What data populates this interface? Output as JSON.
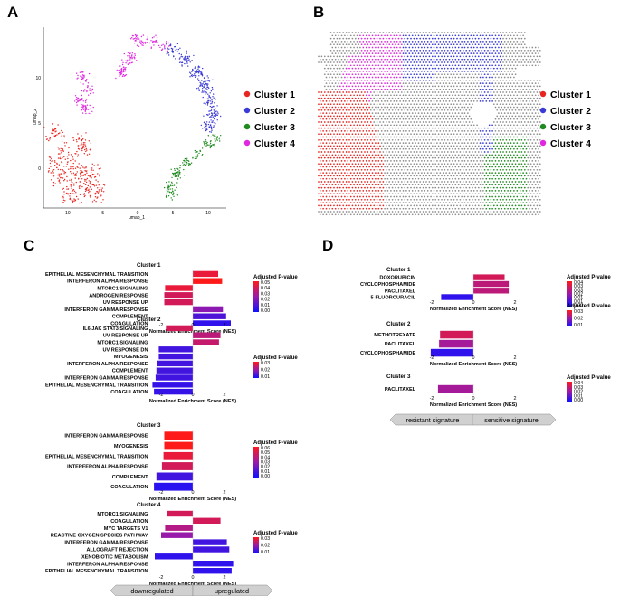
{
  "panels": {
    "A": "A",
    "B": "B",
    "C": "C",
    "D": "D"
  },
  "umap": {
    "xlabel": "umap_1",
    "ylabel": "umap_2",
    "xticks": [
      "-10",
      "-5",
      "0",
      "5",
      "10"
    ],
    "yticks": [
      "0",
      "5",
      "10"
    ]
  },
  "legend_clusters": [
    {
      "label": "Cluster 1",
      "color": "#e8251f"
    },
    {
      "label": "Cluster 2",
      "color": "#3a3ad6"
    },
    {
      "label": "Cluster 3",
      "color": "#1f8a1f"
    },
    {
      "label": "Cluster 4",
      "color": "#e026e0"
    }
  ],
  "gradient": {
    "red": "#ff1a1a",
    "mid": "#9a1aa8",
    "blue": "#1010ff"
  },
  "chart_data": [
    {
      "type": "bar",
      "panel": "C",
      "title": "Cluster 1",
      "xlabel": "Normalized Enrichment Score (NES)",
      "xlim": [
        -3,
        3
      ],
      "xticks": [
        "-2",
        "0",
        "2"
      ],
      "legend_title": "Adjusted P-value",
      "legend_ticks": [
        "0.05",
        "0.04",
        "0.03",
        "0.02",
        "0.01",
        "0.00"
      ],
      "categories": [
        "EPITHELIAL MESENCHYMAL TRANSITION",
        "INTERFERON ALPHA RESPONSE",
        "MTORC1 SIGNALING",
        "ANDROGEN RESPONSE",
        "UV RESPONSE UP",
        "INTERFERON GAMMA RESPONSE",
        "COMPLEMENT",
        "COAGULATION"
      ],
      "values": [
        1.6,
        1.85,
        -1.75,
        -1.8,
        -1.8,
        1.9,
        2.1,
        2.4
      ],
      "padj": [
        0.04,
        0.045,
        0.04,
        0.035,
        0.035,
        0.02,
        0.01,
        0.005
      ]
    },
    {
      "type": "bar",
      "panel": "C",
      "title": "Cluster 2",
      "xlabel": "Normalized Enrichment Score (NES)",
      "xlim": [
        -3,
        3
      ],
      "xticks": [
        "-2",
        "0",
        "2"
      ],
      "legend_title": "Adjusted P-value",
      "legend_ticks": [
        "0.03",
        "0.02",
        "0.01"
      ],
      "categories": [
        "IL6 JAK STAT3 SIGNALING",
        "UV RESPONSE UP",
        "MTORC1 SIGNALING",
        "UV RESPONSE DN",
        "MYOGENESIS",
        "INTERFERON ALPHA RESPONSE",
        "COMPLEMENT",
        "INTERFERON GAMMA RESPONSE",
        "EPITHELIAL MESENCHYMAL TRANSITION",
        "COAGULATION"
      ],
      "values": [
        -1.7,
        1.75,
        1.65,
        -2.15,
        -2.15,
        -2.25,
        -2.3,
        -2.35,
        -2.55,
        -2.45
      ],
      "padj": [
        0.035,
        0.03,
        0.032,
        0.008,
        0.008,
        0.008,
        0.008,
        0.008,
        0.006,
        0.006
      ]
    },
    {
      "type": "bar",
      "panel": "C",
      "title": "Cluster 3",
      "xlabel": "Normalized Enrichment Score (NES)",
      "xlim": [
        -3,
        3
      ],
      "xticks": [
        "-2",
        "0",
        "2"
      ],
      "legend_title": "Adjusted P-value",
      "legend_ticks": [
        "0.06",
        "0.05",
        "0.04",
        "0.03",
        "0.02",
        "0.01",
        "0.00"
      ],
      "categories": [
        "INTERFERON GAMMA RESPONSE",
        "MYOGENESIS",
        "EPITHELIAL MESENCHYMAL TRANSITION",
        "INTERFERON ALPHA RESPONSE",
        "COMPLEMENT",
        "COAGULATION"
      ],
      "values": [
        -1.8,
        -1.8,
        -1.85,
        -1.95,
        -2.3,
        -2.45
      ],
      "padj": [
        0.045,
        0.045,
        0.04,
        0.035,
        0.008,
        0.004
      ]
    },
    {
      "type": "bar",
      "panel": "C",
      "title": "Cluster 4",
      "xlabel": "Normalized Enrichment Score (NES)",
      "xlim": [
        -3,
        3
      ],
      "xticks": [
        "-2",
        "0",
        "2"
      ],
      "legend_title": "Adjusted P-value",
      "legend_ticks": [
        "0.03",
        "0.02",
        "0.01"
      ],
      "categories": [
        "MTORC1 SIGNALING",
        "COAGULATION",
        "MYC TARGETS V1",
        "REACTIVE OXYGEN SPECIES PATHWAY",
        "INTERFERON GAMMA RESPONSE",
        "ALLOGRAFT REJECTION",
        "XENOBIOTIC METABOLISM",
        "INTERFERON ALPHA RESPONSE",
        "EPITHELIAL MESENCHYMAL TRANSITION"
      ],
      "values": [
        -1.6,
        1.75,
        -1.75,
        -2.0,
        2.15,
        2.3,
        -2.4,
        2.55,
        2.45
      ],
      "padj": [
        0.035,
        0.035,
        0.028,
        0.022,
        0.008,
        0.008,
        0.005,
        0.005,
        0.005
      ]
    },
    {
      "type": "bar",
      "panel": "D",
      "title": "Cluster 1",
      "xlabel": "Normalized Enrichment Score (NES)",
      "xlim": [
        -3,
        3
      ],
      "xticks": [
        "-2",
        "0",
        "2"
      ],
      "legend_title": "Adjusted P-value",
      "legend_ticks": [
        "0.04",
        "0.03",
        "0.03",
        "0.02",
        "0.01",
        "0.01",
        "0.00"
      ],
      "categories": [
        "DOXORUBICIN",
        "CYCLOPHOSPHAMIDE",
        "PACLITAXEL",
        "5-FLUOROURACIL"
      ],
      "values": [
        1.5,
        1.7,
        1.7,
        -1.55
      ],
      "padj": [
        0.035,
        0.03,
        0.03,
        0.005
      ]
    },
    {
      "type": "bar",
      "panel": "D",
      "title": "Cluster 2",
      "xlabel": "Normalized Enrichment Score (NES)",
      "xlim": [
        -3,
        3
      ],
      "xticks": [
        "-2",
        "0",
        "2"
      ],
      "legend_title": "Adjusted P-value",
      "legend_ticks": [
        "0.03",
        "0.02",
        "0.01"
      ],
      "categories": [
        "METHOTREXATE",
        "PACLITAXEL",
        "CYCLOPHOSPHAMIDE"
      ],
      "values": [
        -1.6,
        -1.65,
        -2.05
      ],
      "padj": [
        0.035,
        0.025,
        0.005
      ]
    },
    {
      "type": "bar",
      "panel": "D",
      "title": "Cluster 3",
      "xlabel": "Normalized Enrichment Score (NES)",
      "xlim": [
        -3,
        3
      ],
      "xticks": [
        "-2",
        "0",
        "2"
      ],
      "legend_title": "Adjusted P-value",
      "legend_ticks": [
        "0.04",
        "0.03",
        "0.02",
        "0.01",
        "0.00"
      ],
      "categories": [
        "PACLITAXEL"
      ],
      "values": [
        -1.7
      ],
      "padj": [
        0.025
      ]
    }
  ],
  "arrows": {
    "C": {
      "left": "downregulated",
      "right": "upregulated"
    },
    "D": {
      "left": "resistant signature",
      "right": "sensitive signature"
    }
  }
}
